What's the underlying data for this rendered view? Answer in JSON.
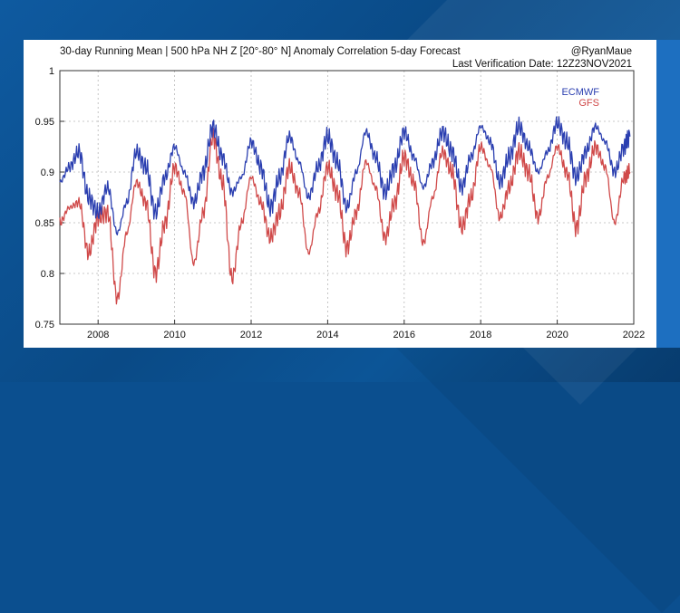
{
  "colors": {
    "ecmwf": "#2b3fb0",
    "gfs": "#d04a4a",
    "background": "#0b4f8f",
    "grid": "#b8b8b8"
  },
  "chart_data": {
    "type": "line",
    "title": "30-day Running Mean | 500 hPa NH Z [20°-80° N] Anomaly Correlation 5-day Forecast",
    "credit": "@RyanMaue",
    "verification": "Last Verification Date: 12Z23NOV2021",
    "xlabel": "",
    "ylabel": "",
    "xlim": [
      2007,
      2022
    ],
    "ylim": [
      0.75,
      1.0
    ],
    "x_ticks": [
      2008,
      2010,
      2012,
      2014,
      2016,
      2018,
      2020,
      2022
    ],
    "x_tick_labels": [
      "2008",
      "2010",
      "2012",
      "2014",
      "2016",
      "2018",
      "2020",
      "2022"
    ],
    "y_ticks": [
      0.75,
      0.8,
      0.85,
      0.9,
      0.95,
      1.0
    ],
    "y_tick_labels": [
      "0.75",
      "0.8",
      "0.85",
      "0.9",
      "0.95",
      "1"
    ],
    "grid": true,
    "legend_position": "top-right",
    "series": [
      {
        "name": "ECMWF",
        "x": [
          2007.0,
          2007.25,
          2007.5,
          2007.75,
          2008.0,
          2008.25,
          2008.5,
          2008.75,
          2009.0,
          2009.25,
          2009.5,
          2009.75,
          2010.0,
          2010.25,
          2010.5,
          2010.75,
          2011.0,
          2011.25,
          2011.5,
          2011.75,
          2012.0,
          2012.25,
          2012.5,
          2012.75,
          2013.0,
          2013.25,
          2013.5,
          2013.75,
          2014.0,
          2014.25,
          2014.5,
          2014.75,
          2015.0,
          2015.25,
          2015.5,
          2015.75,
          2016.0,
          2016.25,
          2016.5,
          2016.75,
          2017.0,
          2017.25,
          2017.5,
          2017.75,
          2018.0,
          2018.25,
          2018.5,
          2018.75,
          2019.0,
          2019.25,
          2019.5,
          2019.75,
          2020.0,
          2020.25,
          2020.5,
          2020.75,
          2021.0,
          2021.25,
          2021.5,
          2021.75,
          2021.9
        ],
        "values": [
          0.89,
          0.905,
          0.92,
          0.875,
          0.86,
          0.885,
          0.84,
          0.87,
          0.92,
          0.905,
          0.86,
          0.895,
          0.925,
          0.9,
          0.87,
          0.9,
          0.945,
          0.915,
          0.88,
          0.895,
          0.93,
          0.905,
          0.865,
          0.895,
          0.935,
          0.91,
          0.875,
          0.905,
          0.935,
          0.91,
          0.865,
          0.9,
          0.94,
          0.915,
          0.88,
          0.905,
          0.94,
          0.915,
          0.885,
          0.91,
          0.94,
          0.92,
          0.885,
          0.915,
          0.945,
          0.93,
          0.89,
          0.915,
          0.945,
          0.925,
          0.9,
          0.92,
          0.948,
          0.93,
          0.895,
          0.92,
          0.945,
          0.93,
          0.9,
          0.925,
          0.935
        ]
      },
      {
        "name": "GFS",
        "x": [
          2007.0,
          2007.25,
          2007.5,
          2007.75,
          2008.0,
          2008.25,
          2008.5,
          2008.75,
          2009.0,
          2009.25,
          2009.5,
          2009.75,
          2010.0,
          2010.25,
          2010.5,
          2010.75,
          2011.0,
          2011.25,
          2011.5,
          2011.75,
          2012.0,
          2012.25,
          2012.5,
          2012.75,
          2013.0,
          2013.25,
          2013.5,
          2013.75,
          2014.0,
          2014.25,
          2014.5,
          2014.75,
          2015.0,
          2015.25,
          2015.5,
          2015.75,
          2016.0,
          2016.25,
          2016.5,
          2016.75,
          2017.0,
          2017.25,
          2017.5,
          2017.75,
          2018.0,
          2018.25,
          2018.5,
          2018.75,
          2019.0,
          2019.25,
          2019.5,
          2019.75,
          2020.0,
          2020.25,
          2020.5,
          2020.75,
          2021.0,
          2021.25,
          2021.5,
          2021.75,
          2021.9
        ],
        "values": [
          0.85,
          0.865,
          0.87,
          0.82,
          0.855,
          0.86,
          0.775,
          0.84,
          0.89,
          0.87,
          0.8,
          0.85,
          0.905,
          0.88,
          0.81,
          0.86,
          0.935,
          0.89,
          0.795,
          0.85,
          0.895,
          0.87,
          0.835,
          0.86,
          0.905,
          0.88,
          0.82,
          0.86,
          0.905,
          0.88,
          0.825,
          0.86,
          0.91,
          0.885,
          0.835,
          0.87,
          0.915,
          0.89,
          0.83,
          0.875,
          0.92,
          0.9,
          0.845,
          0.875,
          0.925,
          0.905,
          0.855,
          0.885,
          0.92,
          0.9,
          0.855,
          0.895,
          0.925,
          0.9,
          0.845,
          0.895,
          0.925,
          0.905,
          0.85,
          0.895,
          0.9
        ]
      }
    ]
  }
}
